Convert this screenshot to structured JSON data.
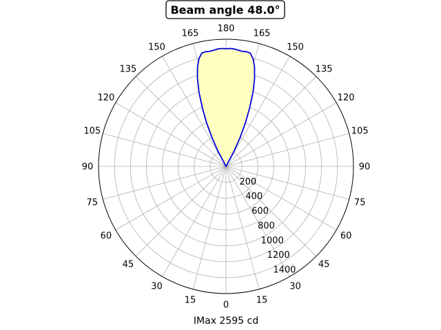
{
  "chart_data": {
    "type": "polar",
    "title": "Beam angle 48.0°",
    "xlabel": "IMax 2595 cd",
    "angle_tick_labels": [
      "180",
      "165",
      "150",
      "135",
      "120",
      "105",
      "90",
      "75",
      "60",
      "45",
      "30",
      "15",
      "0",
      "15",
      "30",
      "45",
      "60",
      "75",
      "90",
      "105",
      "120",
      "135",
      "150",
      "165"
    ],
    "radial_tick_labels": [
      "200",
      "400",
      "600",
      "800",
      "1000",
      "1200",
      "1400"
    ],
    "rlim": [
      0,
      1600
    ],
    "grid": true,
    "series": [
      {
        "values": [
          {
            "angle_from_top": 0,
            "r": 1480
          },
          {
            "angle_from_top": 2,
            "r": 1484
          },
          {
            "angle_from_top": 4,
            "r": 1480
          },
          {
            "angle_from_top": 6,
            "r": 1470
          },
          {
            "angle_from_top": 8,
            "r": 1462
          },
          {
            "angle_from_top": 10,
            "r": 1465
          },
          {
            "angle_from_top": 12,
            "r": 1458
          },
          {
            "angle_from_top": 14,
            "r": 1400
          },
          {
            "angle_from_top": 16,
            "r": 1300
          },
          {
            "angle_from_top": 18,
            "r": 1160
          },
          {
            "angle_from_top": 20,
            "r": 990
          },
          {
            "angle_from_top": 22,
            "r": 790
          },
          {
            "angle_from_top": 24,
            "r": 600
          },
          {
            "angle_from_top": 26,
            "r": 400
          },
          {
            "angle_from_top": 28,
            "r": 210
          },
          {
            "angle_from_top": 30,
            "r": 0
          }
        ],
        "symmetric": true,
        "line_color": "#0000dd",
        "fill_color": "#ffffc0"
      }
    ]
  }
}
